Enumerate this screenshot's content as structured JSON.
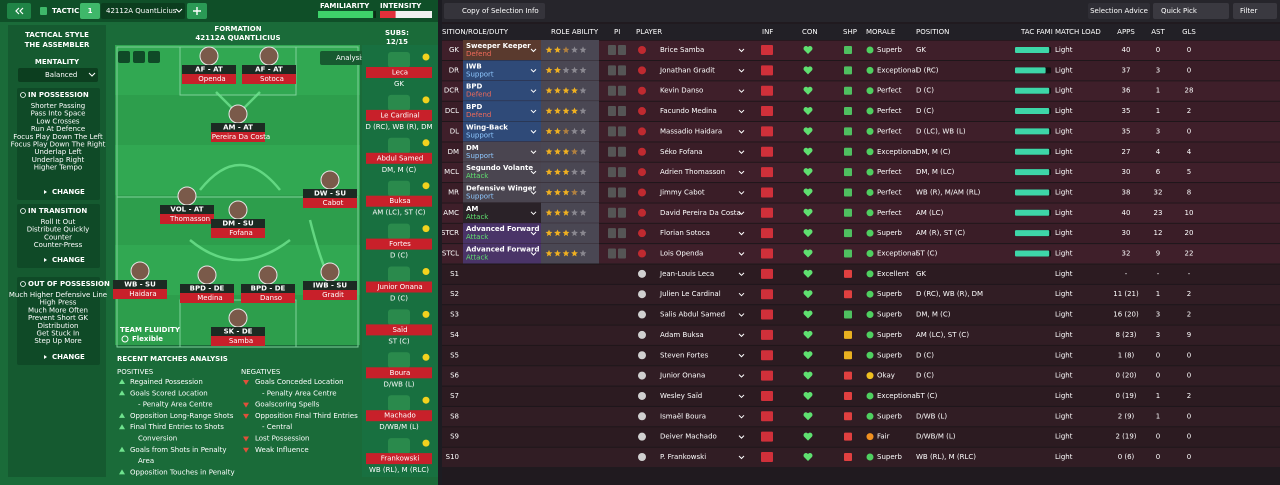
{
  "header": {
    "tactics": "TACTICS",
    "slot": "1",
    "tactic": "42112A QuantLicius",
    "familiarity_label": "FAMILIARITY",
    "familiarity": 0.95,
    "intensity_label": "INTENSITY",
    "intensity": 0.3
  },
  "style": {
    "label": "TACTICAL STYLE",
    "name": "THE ASSEMBLER",
    "mentality_label": "MENTALITY",
    "mentality": "Balanced"
  },
  "instructions": [
    {
      "title": "IN POSSESSION",
      "items": [
        "Shorter Passing",
        "Pass Into Space",
        "Low Crosses",
        "Run At Defence",
        "Focus Play Down The Left",
        "Focus Play Down The Right",
        "Underlap Left",
        "Underlap Right",
        "Higher Tempo"
      ],
      "button": "CHANGE"
    },
    {
      "title": "IN TRANSITION",
      "items": [
        "Roll It Out",
        "Distribute Quickly",
        "Counter",
        "Counter-Press"
      ],
      "button": "CHANGE"
    },
    {
      "title": "OUT OF POSSESSION",
      "items": [
        "Much Higher Defensive Line",
        "High Press",
        "Much More Often",
        "Prevent Short GK",
        "Distribution",
        "Get Stuck In",
        "Step Up More"
      ],
      "button": "CHANGE"
    }
  ],
  "pitch": {
    "formation_label": "FORMATION",
    "formation": "42112A QUANTLICIUS",
    "subs_label": "SUBS:",
    "subs": "12/15",
    "analysis": "Analysis",
    "fluidity_label": "TEAM FLUIDITY",
    "fluidity": "Flexible",
    "players": [
      {
        "role": "AF - AT",
        "name": "Openda"
      },
      {
        "role": "AF - AT",
        "name": "Sotoca"
      },
      {
        "role": "AM - AT",
        "name": "Pereira Da Costa"
      },
      {
        "role": "VOL - AT",
        "name": "Thomasson"
      },
      {
        "role": "DM - SU",
        "name": "Fofana"
      },
      {
        "role": "DW - SU",
        "name": "Cabot"
      },
      {
        "role": "WB - SU",
        "name": "Haidara"
      },
      {
        "role": "BPD - DE",
        "name": "Medina"
      },
      {
        "role": "BPD - DE",
        "name": "Danso"
      },
      {
        "role": "IWB - SU",
        "name": "Gradit"
      },
      {
        "role": "SK - DE",
        "name": "Samba"
      }
    ]
  },
  "subs": [
    {
      "name": "Leca",
      "position": "GK"
    },
    {
      "name": "Le Cardinal",
      "position": "D (RC), WB (R), DM"
    },
    {
      "name": "Abdul Samed",
      "position": "DM, M (C)"
    },
    {
      "name": "Buksa",
      "position": "AM (LC), ST (C)"
    },
    {
      "name": "Fortes",
      "position": "D (C)"
    },
    {
      "name": "Junior Onana",
      "position": "D (C)"
    },
    {
      "name": "Saïd",
      "position": "ST (C)"
    },
    {
      "name": "Boura",
      "position": "D/WB (L)"
    },
    {
      "name": "Machado",
      "position": "D/WB/M (L)"
    },
    {
      "name": "Frankowski",
      "position": "WB (RL), M (RLC)"
    }
  ],
  "analysis": {
    "title": "RECENT MATCHES ANALYSIS",
    "positives_label": "POSITIVES",
    "positives": [
      "Regained Possession",
      "Goals Scored Location",
      "- Penalty Area Centre",
      "Opposition Long-Range Shots",
      "Final Third Entries to Shots",
      "Conversion",
      "Goals from Shots in Penalty",
      "Area",
      "Opposition Touches in Penalty"
    ],
    "negatives_label": "NEGATIVES",
    "negatives": [
      "Goals Conceded Location",
      "- Penalty Area Centre",
      "Goalscoring Spells",
      "Opposition Final Third Entries",
      "- Central",
      "Lost Possession",
      "Weak Influence"
    ]
  },
  "toolbar": {
    "view": "Copy of Selection Info",
    "advice": "Selection Advice",
    "quick_pick": "Quick Pick",
    "filter": "Filter"
  },
  "table": {
    "columns": [
      "SITION/ROLE/DUTY",
      "ROLE ABILITY",
      "PI",
      "PLAYER",
      "INF",
      "CON",
      "SHP",
      "MORALE",
      "POSITION",
      "TAC FAMI",
      "MATCH LOAD",
      "APPS",
      "AST",
      "GLS"
    ],
    "rows": [
      {
        "slot": "GK",
        "role": "Sweeper Keeper",
        "duty": "Defend",
        "ability": 2.5,
        "player": "Brice Samba",
        "morale": "Superb",
        "position": "GK",
        "tac_fami": 0.95,
        "load": "Light",
        "apps": "40",
        "ast": "0",
        "gls": "0"
      },
      {
        "slot": "DR",
        "role": "IWB",
        "duty": "Support",
        "ability": 2,
        "player": "Jonathan Gradit",
        "morale": "Exceptional",
        "position": "D (RC)",
        "tac_fami": 0.85,
        "load": "Light",
        "apps": "37",
        "ast": "3",
        "gls": "0"
      },
      {
        "slot": "DCR",
        "role": "BPD",
        "duty": "Defend",
        "ability": 4,
        "player": "Kevin Danso",
        "morale": "Perfect",
        "position": "D (C)",
        "tac_fami": 0.95,
        "load": "Light",
        "apps": "36",
        "ast": "1",
        "gls": "28"
      },
      {
        "slot": "DCL",
        "role": "BPD",
        "duty": "Defend",
        "ability": 4,
        "player": "Facundo Medina",
        "morale": "Perfect",
        "position": "D (C)",
        "tac_fami": 0.95,
        "load": "Light",
        "apps": "35",
        "ast": "1",
        "gls": "2"
      },
      {
        "slot": "DL",
        "role": "Wing-Back",
        "duty": "Support",
        "ability": 2.5,
        "player": "Massadio Haidara",
        "morale": "Perfect",
        "position": "D (LC), WB (L)",
        "tac_fami": 0.95,
        "load": "Light",
        "apps": "35",
        "ast": "3",
        "gls": "0"
      },
      {
        "slot": "DM",
        "role": "DM",
        "duty": "Support",
        "ability": 3.5,
        "player": "Séko Fofana",
        "morale": "Exceptional",
        "position": "DM, M (C)",
        "tac_fami": 0.95,
        "load": "Light",
        "apps": "27",
        "ast": "4",
        "gls": "4"
      },
      {
        "slot": "MCL",
        "role": "Segundo Volante",
        "duty": "Attack",
        "ability": 3,
        "player": "Adrien Thomasson",
        "morale": "Perfect",
        "position": "DM, M (LC)",
        "tac_fami": 0.95,
        "load": "Light",
        "apps": "30",
        "ast": "6",
        "gls": "5"
      },
      {
        "slot": "MR",
        "role": "Defensive Winger",
        "duty": "Support",
        "ability": 3.5,
        "player": "Jimmy Cabot",
        "morale": "Perfect",
        "position": "WB (R), M/AM (RL)",
        "tac_fami": 0.95,
        "load": "Light",
        "apps": "38",
        "ast": "32",
        "gls": "8"
      },
      {
        "slot": "AMC",
        "role": "AM",
        "duty": "Attack",
        "ability": 3,
        "player": "David Pereira Da Costa",
        "morale": "Perfect",
        "position": "AM (LC)",
        "tac_fami": 0.95,
        "load": "Light",
        "apps": "40",
        "ast": "23",
        "gls": "10"
      },
      {
        "slot": "STCR",
        "role": "Advanced Forward",
        "duty": "Attack",
        "ability": 3,
        "player": "Florian Sotoca",
        "morale": "Superb",
        "position": "AM (R), ST (C)",
        "tac_fami": 0.95,
        "load": "Light",
        "apps": "30",
        "ast": "12",
        "gls": "20"
      },
      {
        "slot": "STCL",
        "role": "Advanced Forward",
        "duty": "Attack",
        "ability": 4,
        "player": "Lois Openda",
        "morale": "Exceptional",
        "position": "ST (C)",
        "tac_fami": 0.95,
        "load": "Light",
        "apps": "32",
        "ast": "9",
        "gls": "22"
      },
      {
        "slot": "S1",
        "player": "Jean-Louis Leca",
        "morale": "Excellent",
        "position": "GK",
        "load": "Light",
        "apps": "-",
        "ast": "-",
        "gls": "-"
      },
      {
        "slot": "S2",
        "player": "Julien Le Cardinal",
        "morale": "Superb",
        "position": "D (RC), WB (R), DM",
        "load": "Light",
        "apps": "11 (21)",
        "ast": "1",
        "gls": "2"
      },
      {
        "slot": "S3",
        "player": "Salis Abdul Samed",
        "morale": "Superb",
        "position": "DM, M (C)",
        "load": "Light",
        "apps": "16 (20)",
        "ast": "3",
        "gls": "2"
      },
      {
        "slot": "S4",
        "player": "Adam Buksa",
        "morale": "Superb",
        "position": "AM (LC), ST (C)",
        "load": "Light",
        "apps": "8 (23)",
        "ast": "3",
        "gls": "9"
      },
      {
        "slot": "S5",
        "player": "Steven Fortes",
        "morale": "Superb",
        "position": "D (C)",
        "load": "Light",
        "apps": "1 (8)",
        "ast": "0",
        "gls": "0"
      },
      {
        "slot": "S6",
        "player": "Junior Onana",
        "morale": "Okay",
        "position": "D (C)",
        "load": "Light",
        "apps": "0 (20)",
        "ast": "0",
        "gls": "0"
      },
      {
        "slot": "S7",
        "player": "Wesley Saïd",
        "morale": "Exceptional",
        "position": "ST (C)",
        "load": "Light",
        "apps": "0 (19)",
        "ast": "1",
        "gls": "2"
      },
      {
        "slot": "S8",
        "player": "Ismaël Boura",
        "morale": "Superb",
        "position": "D/WB (L)",
        "load": "Light",
        "apps": "2 (9)",
        "ast": "1",
        "gls": "0"
      },
      {
        "slot": "S9",
        "player": "Deiver Machado",
        "morale": "Fair",
        "position": "D/WB/M (L)",
        "load": "Light",
        "apps": "2 (19)",
        "ast": "0",
        "gls": "0"
      },
      {
        "slot": "S10",
        "player": "P. Frankowski",
        "morale": "Superb",
        "position": "WB (RL), M (RLC)",
        "load": "Light",
        "apps": "0 (6)",
        "ast": "0",
        "gls": "0"
      }
    ]
  }
}
